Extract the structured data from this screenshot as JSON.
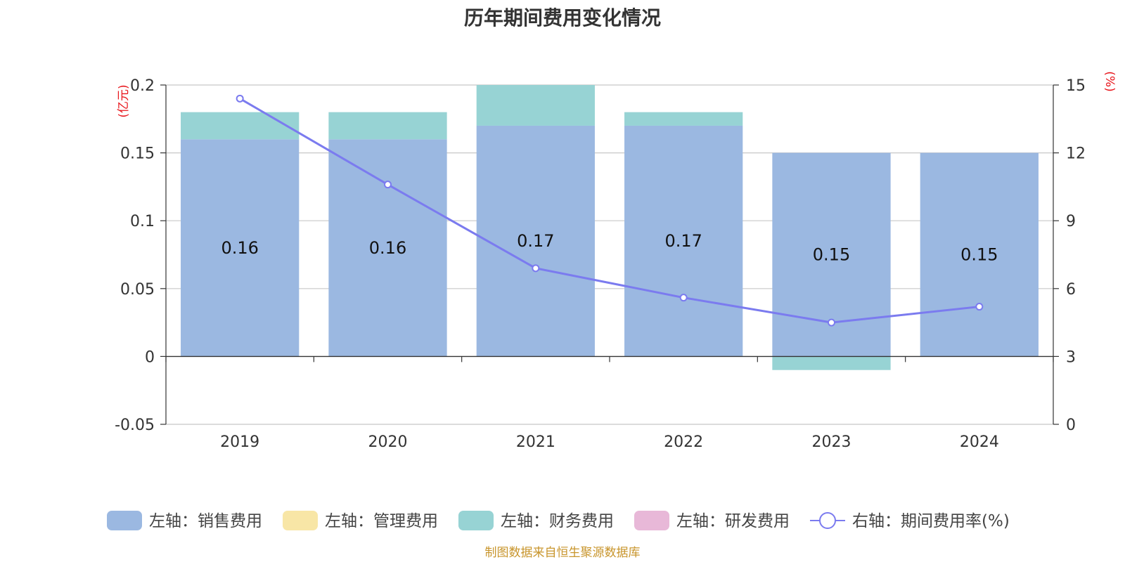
{
  "chart_data": {
    "type": "bar",
    "title": "历年期间费用变化情况",
    "categories": [
      "2019",
      "2020",
      "2021",
      "2022",
      "2023",
      "2024"
    ],
    "left_axis": {
      "unit": "(亿元)",
      "ylim": [
        -0.05,
        0.2
      ],
      "ticks": [
        "-0.05",
        "0",
        "0.05",
        "0.1",
        "0.15",
        "0.2"
      ]
    },
    "right_axis": {
      "unit": "(%)",
      "ylim": [
        0,
        15
      ],
      "ticks": [
        "0",
        "3",
        "6",
        "9",
        "12",
        "15"
      ]
    },
    "series": [
      {
        "name": "左轴：销售费用",
        "kind": "bar",
        "axis": "left",
        "color": "#9bb8e1",
        "values": [
          0.16,
          0.16,
          0.17,
          0.17,
          0.15,
          0.15
        ],
        "labels": [
          "0.16",
          "0.16",
          "0.17",
          "0.17",
          "0.15",
          "0.15"
        ]
      },
      {
        "name": "左轴：管理费用",
        "kind": "bar",
        "axis": "left",
        "color": "#f8e6a6",
        "values": [
          0,
          0,
          0,
          0,
          0,
          0
        ]
      },
      {
        "name": "左轴：财务费用",
        "kind": "bar",
        "axis": "left",
        "color": "#97d3d4",
        "values": [
          0.02,
          0.02,
          0.03,
          0.01,
          -0.01,
          0
        ]
      },
      {
        "name": "左轴：研发费用",
        "kind": "bar",
        "axis": "left",
        "color": "#e8b8d8",
        "values": [
          0,
          0,
          0,
          0,
          0,
          0
        ]
      },
      {
        "name": "右轴：期间费用率(%)",
        "kind": "line",
        "axis": "right",
        "color": "#7b7bef",
        "values": [
          14.4,
          10.6,
          6.9,
          5.6,
          4.5,
          5.2
        ]
      }
    ],
    "grid": true,
    "legend_position": "bottom"
  },
  "source_note": "制图数据来自恒生聚源数据库"
}
